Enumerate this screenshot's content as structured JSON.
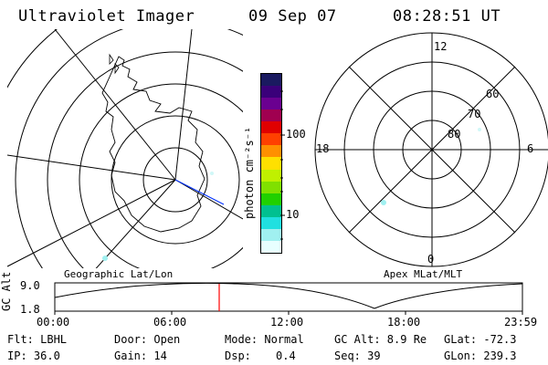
{
  "header": {
    "instrument": "Ultraviolet Imager",
    "date": "09 Sep 07",
    "time": "08:28:51 UT"
  },
  "panels": {
    "left_label": "Geographic Lat/Lon",
    "right_label": "Apex MLat/MLT"
  },
  "colorbar": {
    "unit": "photon cm⁻²s⁻¹",
    "ticks": [
      "100",
      "10"
    ],
    "colors": [
      "#1a1a60",
      "#3a007a",
      "#6a0090",
      "#a00050",
      "#e00000",
      "#ff4000",
      "#ff9000",
      "#ffe000",
      "#c0f000",
      "#80e000",
      "#20d000",
      "#00c090",
      "#20e0e0",
      "#a0f0f0",
      "#e8ffff"
    ]
  },
  "polar_plot": {
    "mlt_labels": [
      "12",
      "18",
      "6",
      "0"
    ],
    "lat_labels": [
      "60",
      "70",
      "80"
    ]
  },
  "altitude_plot": {
    "ylabel": "GC Alt",
    "yticks": [
      "9.0",
      "1.8"
    ],
    "xticks": [
      "00:00",
      "06:00",
      "12:00",
      "18:00",
      "23:59"
    ],
    "current_time_marker": "08:28",
    "marker_color": "#ff0000"
  },
  "info": {
    "flt": "Flt: LBHL",
    "ip": "IP: 36.0",
    "door": "Door: Open",
    "gain": "Gain: 14",
    "mode": "Mode: Normal",
    "dsp_label": "Dsp:",
    "dsp_value": "0.4",
    "gc_alt": "GC Alt: 8.9 Re",
    "seq": "Seq: 39",
    "glat": "GLat: -72.3",
    "glon": "GLon: 239.3"
  }
}
